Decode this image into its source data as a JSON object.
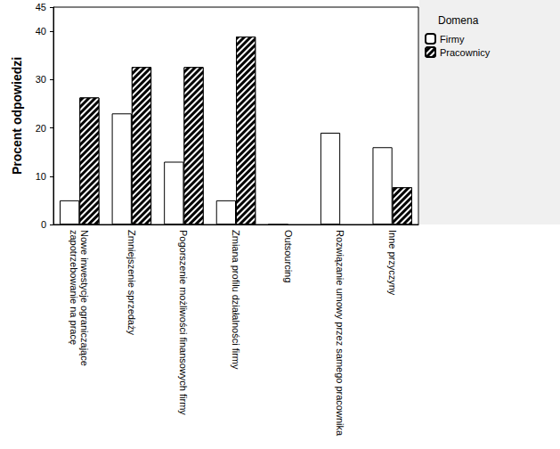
{
  "chart_data": {
    "type": "bar",
    "y_label": "Procent odpowiedzi",
    "legend_title": "Domena",
    "categories": [
      "Nowe inwestycje ograniczające\nzapotrzebowanie na pracę",
      "Zmniejszenie sprzedaży",
      "Pogorszenie możliwości finansowych firmy",
      "Zmiana profilu działalności firmy",
      "Outsourcing",
      "Rozwiązanie umowy przez samego pracownika",
      "Inne przyczyny"
    ],
    "series": [
      {
        "name": "Firmy",
        "color": "#ffffff",
        "values": [
          5,
          23,
          13,
          5,
          0,
          19,
          16
        ]
      },
      {
        "name": "Pracownicy",
        "color": "#000000",
        "values": [
          26.3,
          32.6,
          32.6,
          38.9,
          null,
          null,
          7.7
        ]
      }
    ],
    "ylim": [
      0,
      45
    ],
    "yticks": [
      0,
      10,
      20,
      30,
      40
    ],
    "grid": false,
    "legend": "top right"
  }
}
